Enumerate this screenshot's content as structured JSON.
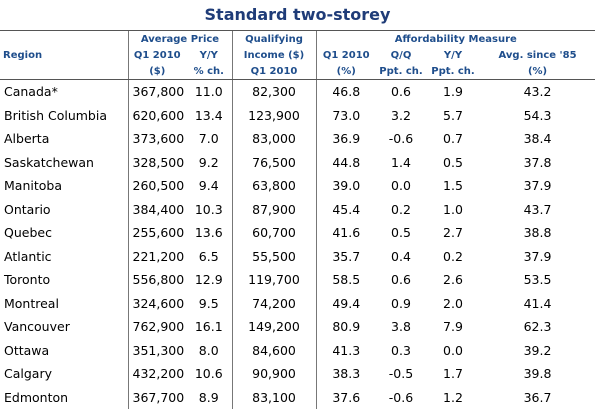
{
  "title": "Standard two-storey",
  "table": {
    "group_headers": [
      "Average Price",
      "Qualifying",
      "Affordability Measure"
    ],
    "header_row1": [
      "Region",
      "Q1 2010",
      "Y/Y",
      "Income ($)",
      "Q1 2010",
      "Q/Q",
      "Y/Y",
      "Avg. since '85"
    ],
    "header_row2": [
      "($)",
      "% ch.",
      "Q1 2010",
      "(%)",
      "Ppt. ch.",
      "Ppt. ch.",
      "(%)"
    ],
    "rows": [
      [
        "Canada*",
        "367,800",
        "11.0",
        "82,300",
        "46.8",
        "0.6",
        "1.9",
        "43.2"
      ],
      [
        "British Columbia",
        "620,600",
        "13.4",
        "123,900",
        "73.0",
        "3.2",
        "5.7",
        "54.3"
      ],
      [
        "Alberta",
        "373,600",
        "7.0",
        "83,000",
        "36.9",
        "-0.6",
        "0.7",
        "38.4"
      ],
      [
        "Saskatchewan",
        "328,500",
        "9.2",
        "76,500",
        "44.8",
        "1.4",
        "0.5",
        "37.8"
      ],
      [
        "Manitoba",
        "260,500",
        "9.4",
        "63,800",
        "39.0",
        "0.0",
        "1.5",
        "37.9"
      ],
      [
        "Ontario",
        "384,400",
        "10.3",
        "87,900",
        "45.4",
        "0.2",
        "1.0",
        "43.7"
      ],
      [
        "Quebec",
        "255,600",
        "13.6",
        "60,700",
        "41.6",
        "0.5",
        "2.7",
        "38.8"
      ],
      [
        "Atlantic",
        "221,200",
        "6.5",
        "55,500",
        "35.7",
        "0.4",
        "0.2",
        "37.9"
      ],
      [
        "Toronto",
        "556,800",
        "12.9",
        "119,700",
        "58.5",
        "0.6",
        "2.6",
        "53.5"
      ],
      [
        "Montreal",
        "324,600",
        "9.5",
        "74,200",
        "49.4",
        "0.9",
        "2.0",
        "41.4"
      ],
      [
        "Vancouver",
        "762,900",
        "16.1",
        "149,200",
        "80.9",
        "3.8",
        "7.9",
        "62.3"
      ],
      [
        "Ottawa",
        "351,300",
        "8.0",
        "84,600",
        "41.3",
        "0.3",
        "0.0",
        "39.2"
      ],
      [
        "Calgary",
        "432,200",
        "10.6",
        "90,900",
        "38.3",
        "-0.5",
        "1.7",
        "39.8"
      ],
      [
        "Edmonton",
        "367,700",
        "8.9",
        "83,100",
        "37.6",
        "-0.6",
        "1.2",
        "36.7"
      ]
    ]
  }
}
